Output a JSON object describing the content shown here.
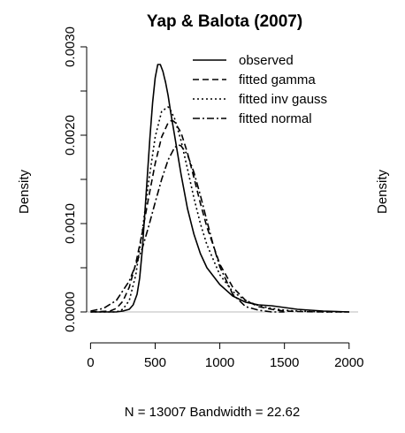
{
  "chart_data": {
    "type": "line",
    "title": "Yap & Balota (2007)",
    "xlabel": "N = 13007   Bandwidth = 22.62",
    "ylabel": "Density",
    "ylabel_right": "Density",
    "xlim": [
      -30,
      2070
    ],
    "ylim": [
      -0.00035,
      0.0031
    ],
    "x_ticks": [
      0,
      500,
      1000,
      1500,
      2000
    ],
    "x_tick_labels": [
      "0",
      "500",
      "1000",
      "1500",
      "2000"
    ],
    "y_ticks": [
      0.0,
      0.001,
      0.002,
      0.003
    ],
    "y_tick_labels": [
      "0.0000",
      "0.0010",
      "0.0020",
      "0.0030"
    ],
    "y_minor_ticks": [
      0.0005,
      0.0015,
      0.0025
    ],
    "legend_position": "top-right",
    "grid": false,
    "series": [
      {
        "name": "observed",
        "dash": "solid",
        "x": [
          0,
          200,
          250,
          300,
          330,
          360,
          380,
          400,
          420,
          440,
          460,
          480,
          500,
          520,
          540,
          560,
          570,
          580,
          600,
          620,
          650,
          700,
          750,
          800,
          850,
          900,
          1000,
          1100,
          1200,
          1300,
          1400,
          1500,
          1600,
          1800,
          2000
        ],
        "y": [
          0,
          0,
          1e-05,
          3e-05,
          8e-05,
          0.0002,
          0.00038,
          0.0007,
          0.00112,
          0.00155,
          0.00198,
          0.00237,
          0.00265,
          0.0028,
          0.0028,
          0.00272,
          0.00266,
          0.0026,
          0.00245,
          0.00226,
          0.002,
          0.00156,
          0.00117,
          0.00088,
          0.00066,
          0.0005,
          0.00031,
          0.00018,
          0.00011,
          8e-05,
          7e-05,
          5e-05,
          3e-05,
          1e-05,
          0
        ]
      },
      {
        "name": "fitted gamma",
        "dash": "dashed",
        "x": [
          0,
          150,
          200,
          250,
          300,
          350,
          400,
          450,
          500,
          550,
          600,
          630,
          650,
          700,
          750,
          800,
          850,
          900,
          1000,
          1100,
          1200,
          1300,
          1400,
          1500,
          1600,
          1800,
          2000
        ],
        "y": [
          0,
          1e-05,
          4e-05,
          0.00012,
          0.00028,
          0.00055,
          0.0009,
          0.0013,
          0.00168,
          0.00198,
          0.00214,
          0.00217,
          0.00215,
          0.00203,
          0.0018,
          0.00152,
          0.00123,
          0.00096,
          0.00054,
          0.00028,
          0.00013,
          6e-05,
          3e-05,
          1e-05,
          5e-06,
          0,
          0
        ]
      },
      {
        "name": "fitted inv gauss",
        "dash": "dotted",
        "x": [
          0,
          200,
          250,
          300,
          350,
          400,
          450,
          500,
          550,
          600,
          620,
          650,
          700,
          750,
          800,
          850,
          900,
          1000,
          1100,
          1200,
          1300,
          1400,
          1500,
          1600,
          1800,
          2000
        ],
        "y": [
          0,
          0,
          3e-05,
          0.00013,
          0.00042,
          0.00091,
          0.00148,
          0.00198,
          0.00227,
          0.00232,
          0.00228,
          0.00219,
          0.00194,
          0.00162,
          0.00129,
          0.001,
          0.00076,
          0.00042,
          0.00023,
          0.00013,
          7e-05,
          4e-05,
          2e-05,
          1e-05,
          0,
          0
        ]
      },
      {
        "name": "fitted normal",
        "dash": "dotdash",
        "x": [
          0,
          100,
          200,
          300,
          400,
          450,
          500,
          550,
          600,
          650,
          680,
          700,
          750,
          800,
          850,
          900,
          950,
          1000,
          1100,
          1200,
          1300,
          1400,
          1500
        ],
        "y": [
          1e-05,
          4e-05,
          0.00013,
          0.00035,
          0.00072,
          0.00097,
          0.00124,
          0.0015,
          0.00172,
          0.00186,
          0.00189,
          0.00188,
          0.00178,
          0.00158,
          0.00132,
          0.00103,
          0.00075,
          0.00051,
          0.0002,
          6e-05,
          2e-05,
          0,
          0
        ]
      }
    ],
    "series_colors": [
      "#000000",
      "#000000",
      "#000000",
      "#000000"
    ],
    "baseline_color": "#bbbbbb"
  }
}
